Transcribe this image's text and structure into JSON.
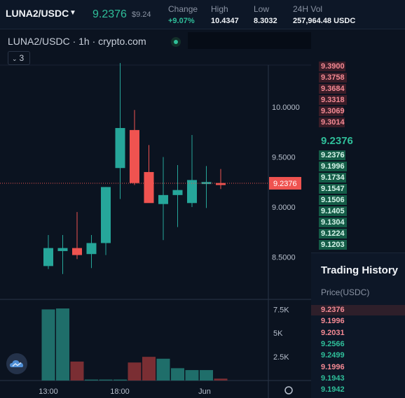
{
  "header": {
    "pair": "LUNA2/USDC",
    "last_price": "9.2376",
    "last_price_usd": "$9.24",
    "stats": [
      {
        "label": "Change",
        "value": "+9.07%",
        "up": true
      },
      {
        "label": "High",
        "value": "10.4347",
        "up": false
      },
      {
        "label": "Low",
        "value": "8.3032",
        "up": false
      },
      {
        "label": "24H Vol",
        "value": "257,964.48 USDC",
        "up": false
      }
    ]
  },
  "chart": {
    "title": "LUNA2/USDC · 1h · crypto.com",
    "indicator_count": "3",
    "current_price_label": "9.2376",
    "colors": {
      "up": "#26a69a",
      "down": "#ef5350",
      "up_vol": "#1f6e6a",
      "down_vol": "#7a2e33"
    }
  },
  "chart_data": {
    "type": "candlestick",
    "price_axis": {
      "min": 8.2,
      "max": 10.45,
      "ticks": [
        "10.0000",
        "9.5000",
        "9.0000",
        "8.5000"
      ]
    },
    "volume_axis": {
      "max": 7.6,
      "ticks": [
        "7.5K",
        "5K",
        "2.5K"
      ]
    },
    "time_ticks": [
      "13:00",
      "18:00",
      "Jun"
    ],
    "candles": [
      {
        "o": 8.41,
        "h": 8.72,
        "l": 8.38,
        "c": 8.59,
        "v": 7.5
      },
      {
        "o": 8.56,
        "h": 8.72,
        "l": 8.33,
        "c": 8.59,
        "v": 7.6
      },
      {
        "o": 8.59,
        "h": 8.95,
        "l": 8.48,
        "c": 8.52,
        "v": 2.0
      },
      {
        "o": 8.53,
        "h": 8.72,
        "l": 8.39,
        "c": 8.64,
        "v": 0.1
      },
      {
        "o": 8.64,
        "h": 9.2,
        "l": 8.52,
        "c": 9.2,
        "v": 0.1
      },
      {
        "o": 9.39,
        "h": 10.44,
        "l": 9.08,
        "c": 9.79,
        "v": 0.1
      },
      {
        "o": 9.77,
        "h": 9.97,
        "l": 9.22,
        "c": 9.24,
        "v": 1.9
      },
      {
        "o": 9.35,
        "h": 9.62,
        "l": 9.05,
        "c": 9.04,
        "v": 2.5
      },
      {
        "o": 9.03,
        "h": 9.5,
        "l": 8.67,
        "c": 9.12,
        "v": 2.3
      },
      {
        "o": 9.12,
        "h": 9.42,
        "l": 8.8,
        "c": 9.17,
        "v": 1.3
      },
      {
        "o": 9.04,
        "h": 9.72,
        "l": 9.0,
        "c": 9.27,
        "v": 1.1
      },
      {
        "o": 9.23,
        "h": 9.41,
        "l": 8.99,
        "c": 9.25,
        "v": 1.1
      },
      {
        "o": 9.24,
        "h": 9.38,
        "l": 9.18,
        "c": 9.22,
        "v": 0.2
      }
    ]
  },
  "order_book": {
    "asks": [
      "9.3900",
      "9.3758",
      "9.3684",
      "9.3318",
      "9.3069",
      "9.3014"
    ],
    "mid": "9.2376",
    "bids": [
      "9.2376",
      "9.1996",
      "9.1734",
      "9.1547",
      "9.1506",
      "9.1405",
      "9.1304",
      "9.1224",
      "9.1203"
    ]
  },
  "trading_history": {
    "title": "Trading History",
    "column": "Price(USDC)",
    "trades": [
      {
        "price": "9.2376",
        "side": "sell"
      },
      {
        "price": "9.1996",
        "side": "sell"
      },
      {
        "price": "9.2031",
        "side": "sell"
      },
      {
        "price": "9.2566",
        "side": "buy"
      },
      {
        "price": "9.2499",
        "side": "buy"
      },
      {
        "price": "9.1996",
        "side": "sell"
      },
      {
        "price": "9.1943",
        "side": "buy"
      },
      {
        "price": "9.1942",
        "side": "buy"
      }
    ]
  }
}
